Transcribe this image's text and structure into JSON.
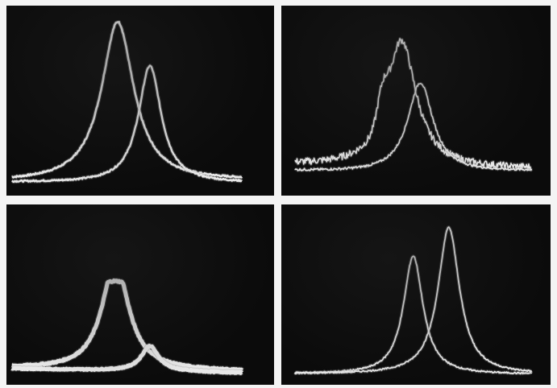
{
  "panels": [
    {
      "id": "top-left",
      "curves": [
        {
          "name": "a",
          "center": 0.46,
          "width": 0.085,
          "peak": 0.85,
          "baseline": 0.02,
          "tail": 0.06,
          "noise": 0.004,
          "thickness": 2.6
        },
        {
          "name": "b",
          "center": 0.6,
          "width": 0.06,
          "peak": 0.62,
          "baseline": 0.02,
          "tail": 0.03,
          "noise": 0.004,
          "thickness": 2.4
        }
      ]
    },
    {
      "id": "top-right",
      "curves": [
        {
          "name": "a",
          "center": 0.45,
          "width": 0.075,
          "peak": 0.68,
          "baseline": 0.08,
          "tail": 0.08,
          "noise": 0.018,
          "thickness": 1.6,
          "shoulder": {
            "center": 0.37,
            "width": 0.03,
            "peak": 0.14
          }
        },
        {
          "name": "b",
          "center": 0.53,
          "width": 0.065,
          "peak": 0.48,
          "baseline": 0.05,
          "tail": 0.1,
          "noise": 0.006,
          "thickness": 1.6
        }
      ]
    },
    {
      "id": "bottom-left",
      "curves": [
        {
          "name": "a",
          "center": 0.45,
          "width": 0.07,
          "peak": 0.48,
          "baseline": 0.04,
          "tail": 0.02,
          "noise": 0.004,
          "thickness": 5.0,
          "flat": 0.55
        },
        {
          "name": "b",
          "center": 0.6,
          "width": 0.045,
          "peak": 0.14,
          "baseline": 0.04,
          "tail": 0.0,
          "noise": 0.003,
          "thickness": 5.0
        }
      ]
    },
    {
      "id": "bottom-right",
      "curves": [
        {
          "name": "a",
          "center": 0.5,
          "width": 0.05,
          "peak": 0.66,
          "baseline": 0.02,
          "tail": 0.03,
          "noise": 0.004,
          "thickness": 1.8
        },
        {
          "name": "b",
          "center": 0.65,
          "width": 0.055,
          "peak": 0.82,
          "baseline": 0.02,
          "tail": 0.04,
          "noise": 0.004,
          "thickness": 1.8
        }
      ]
    }
  ],
  "colors": {
    "background": "#f4f4f4",
    "panel": "#0b0b0b",
    "trace": "#e8e8e8",
    "trace_glow": "#9a9a9a"
  }
}
